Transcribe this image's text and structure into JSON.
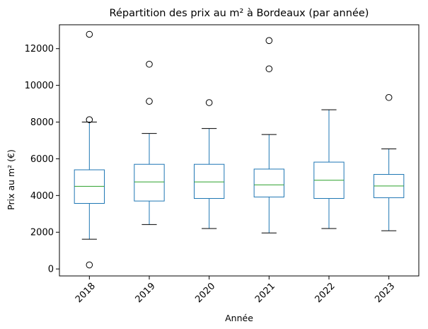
{
  "chart_data": {
    "type": "box",
    "title": "Répartition des prix au m² à Bordeaux (par année)",
    "xlabel": "Année",
    "ylabel": "Prix au m² (€)",
    "categories": [
      "2018",
      "2019",
      "2020",
      "2021",
      "2022",
      "2023"
    ],
    "ylim": [
      -380,
      13300
    ],
    "yticks": [
      0,
      2000,
      4000,
      6000,
      8000,
      10000,
      12000
    ],
    "ytick_labels": [
      "0",
      "2000",
      "4000",
      "6000",
      "8000",
      "10000",
      "12000"
    ],
    "grid": false,
    "xtick_rotation": 45,
    "colors": {
      "box": "#1f77b4",
      "median": "#2ca02c",
      "outlier": "#000000",
      "axis": "#000000"
    },
    "boxes": [
      {
        "category": "2018",
        "whisker_low": 1620,
        "q1": 3570,
        "median": 4500,
        "q3": 5400,
        "whisker_high": 8000,
        "outliers": [
          12780,
          8130,
          220
        ]
      },
      {
        "category": "2019",
        "whisker_low": 2420,
        "q1": 3700,
        "median": 4740,
        "q3": 5700,
        "whisker_high": 7380,
        "outliers": [
          11150,
          9130
        ]
      },
      {
        "category": "2020",
        "whisker_low": 2200,
        "q1": 3840,
        "median": 4740,
        "q3": 5700,
        "whisker_high": 7650,
        "outliers": [
          9060
        ]
      },
      {
        "category": "2021",
        "whisker_low": 1960,
        "q1": 3920,
        "median": 4580,
        "q3": 5440,
        "whisker_high": 7320,
        "outliers": [
          12440,
          10900
        ]
      },
      {
        "category": "2022",
        "whisker_low": 2200,
        "q1": 3840,
        "median": 4830,
        "q3": 5820,
        "whisker_high": 8670,
        "outliers": []
      },
      {
        "category": "2023",
        "whisker_low": 2080,
        "q1": 3880,
        "median": 4520,
        "q3": 5150,
        "whisker_high": 6540,
        "outliers": [
          9340
        ]
      }
    ]
  }
}
